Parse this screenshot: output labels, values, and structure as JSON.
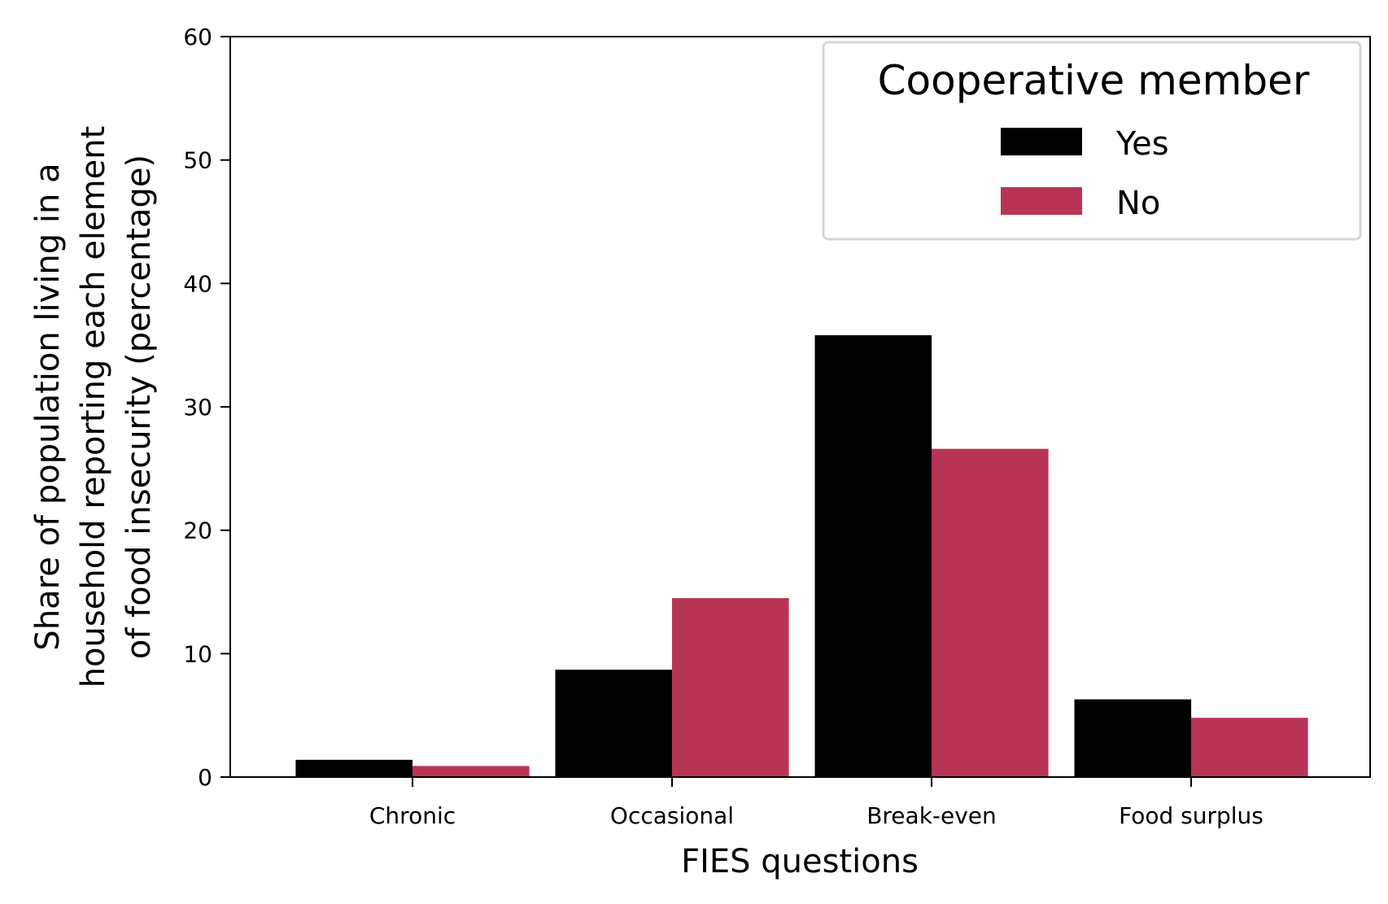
{
  "chart_data": {
    "type": "bar",
    "title": "",
    "xlabel": "FIES questions",
    "ylabel": [
      "Share of population living in a",
      "household reporting each element",
      "of food insecurity (percentage)"
    ],
    "categories": [
      "Chronic",
      "Occasional",
      "Break-even",
      "Food surplus"
    ],
    "series": [
      {
        "name": "Yes",
        "color": "#000000",
        "values": [
          1.4,
          8.7,
          35.8,
          6.3
        ]
      },
      {
        "name": "No",
        "color": "#b83454",
        "values": [
          0.9,
          14.5,
          26.6,
          4.8
        ]
      }
    ],
    "ylim": [
      0,
      60
    ],
    "yticks": [
      "0",
      "10",
      "20",
      "30",
      "40",
      "50",
      "60"
    ],
    "grid": false,
    "legend": {
      "title": "Cooperative member",
      "placement": "top-right",
      "entries": [
        "Yes",
        "No"
      ]
    }
  }
}
